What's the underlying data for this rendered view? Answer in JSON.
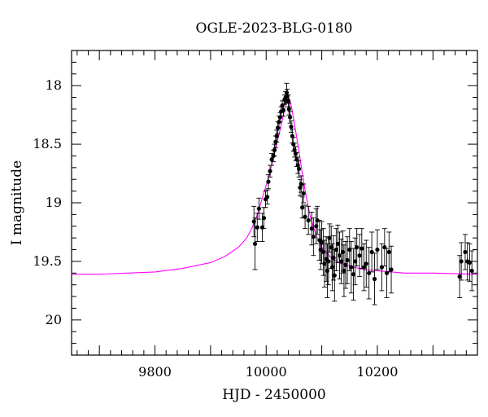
{
  "chart_data": {
    "type": "scatter",
    "title": "OGLE-2023-BLG-0180",
    "xlabel": "HJD - 2450000",
    "ylabel": "I magnitude",
    "xlim": [
      9650,
      10380
    ],
    "ylim": [
      20.3,
      17.7
    ],
    "y_inverted": true,
    "xticks": [
      9800,
      10000,
      10200
    ],
    "xtick_labels": [
      "9800",
      "10000",
      "10200"
    ],
    "yticks": [
      18,
      18.5,
      19,
      19.5,
      20
    ],
    "ytick_labels": [
      "18",
      "18.5",
      "19",
      "19.5",
      "20"
    ],
    "grid": false,
    "legend": "none",
    "colors": {
      "points": "#000000",
      "model": "#ff00ff",
      "axes": "#000000"
    },
    "series": [
      {
        "kind": "points_with_errorbars",
        "x": [
          9978,
          9980,
          9984,
          9987,
          9993,
          9996,
          9999,
          10002,
          10004,
          10007,
          10010,
          10013,
          10015,
          10017,
          10019,
          10021,
          10023,
          10025,
          10027,
          10029,
          10031,
          10033,
          10035,
          10037,
          10038,
          10040,
          10041,
          10043,
          10045,
          10047,
          10049,
          10051,
          10053,
          10055,
          10057,
          10059,
          10061,
          10063,
          10065,
          10067,
          10070,
          10076,
          10082,
          10085,
          10090,
          10092,
          10096,
          10098,
          10100,
          10103,
          10105,
          10108,
          10110,
          10112,
          10114,
          10117,
          10119,
          10121,
          10123,
          10126,
          10129,
          10132,
          10135,
          10138,
          10140,
          10143,
          10146,
          10150,
          10153,
          10157,
          10160,
          10163,
          10168,
          10172,
          10176,
          10180,
          10185,
          10190,
          10195,
          10200,
          10208,
          10213,
          10217,
          10221,
          10225,
          10348,
          10351,
          10358,
          10362,
          10366,
          10370
        ],
        "y": [
          19.16,
          19.35,
          19.21,
          19.05,
          19.21,
          19.13,
          18.97,
          18.95,
          18.82,
          18.73,
          18.63,
          18.6,
          18.55,
          18.48,
          18.43,
          18.36,
          18.31,
          18.27,
          18.22,
          18.17,
          18.21,
          18.12,
          18.1,
          18.06,
          18.09,
          18.13,
          18.2,
          18.27,
          18.35,
          18.43,
          18.5,
          18.55,
          18.58,
          18.63,
          18.68,
          18.71,
          18.87,
          18.84,
          19.04,
          18.92,
          19.12,
          19.15,
          19.22,
          19.29,
          19.2,
          19.15,
          19.32,
          19.4,
          19.34,
          19.42,
          19.52,
          19.48,
          19.58,
          19.5,
          19.3,
          19.38,
          19.55,
          19.47,
          19.62,
          19.4,
          19.35,
          19.45,
          19.5,
          19.42,
          19.58,
          19.53,
          19.49,
          19.4,
          19.55,
          19.61,
          19.5,
          19.38,
          19.45,
          19.39,
          19.55,
          19.52,
          19.6,
          19.42,
          19.65,
          19.4,
          19.55,
          19.38,
          19.6,
          19.42,
          19.57,
          19.63,
          19.5,
          19.42,
          19.5,
          19.51,
          19.58
        ],
        "yerr": [
          0.13,
          0.22,
          0.12,
          0.09,
          0.12,
          0.09,
          0.07,
          0.06,
          0.06,
          0.05,
          0.05,
          0.05,
          0.05,
          0.05,
          0.05,
          0.05,
          0.05,
          0.04,
          0.04,
          0.04,
          0.05,
          0.04,
          0.05,
          0.08,
          0.06,
          0.05,
          0.05,
          0.05,
          0.05,
          0.06,
          0.06,
          0.06,
          0.06,
          0.06,
          0.07,
          0.07,
          0.07,
          0.07,
          0.09,
          0.08,
          0.1,
          0.12,
          0.14,
          0.16,
          0.15,
          0.12,
          0.17,
          0.17,
          0.18,
          0.2,
          0.2,
          0.19,
          0.23,
          0.2,
          0.12,
          0.18,
          0.2,
          0.19,
          0.22,
          0.18,
          0.16,
          0.2,
          0.19,
          0.18,
          0.22,
          0.2,
          0.2,
          0.18,
          0.22,
          0.22,
          0.2,
          0.16,
          0.18,
          0.17,
          0.2,
          0.2,
          0.22,
          0.17,
          0.22,
          0.17,
          0.2,
          0.16,
          0.21,
          0.17,
          0.2,
          0.18,
          0.16,
          0.15,
          0.16,
          0.16,
          0.17
        ]
      },
      {
        "kind": "model_curve",
        "color": "#ff00ff",
        "x": [
          9650,
          9700,
          9750,
          9800,
          9850,
          9900,
          9925,
          9950,
          9965,
          9975,
          9985,
          9995,
          10005,
          10015,
          10025,
          10030,
          10035,
          10039,
          10043,
          10047,
          10052,
          10058,
          10065,
          10072,
          10080,
          10090,
          10100,
          10115,
          10130,
          10150,
          10175,
          10200,
          10250,
          10300,
          10380
        ],
        "y": [
          19.61,
          19.61,
          19.6,
          19.59,
          19.56,
          19.51,
          19.46,
          19.38,
          19.3,
          19.21,
          19.09,
          18.93,
          18.77,
          18.58,
          18.38,
          18.27,
          18.16,
          18.08,
          18.13,
          18.22,
          18.36,
          18.53,
          18.75,
          18.95,
          19.13,
          19.28,
          19.38,
          19.46,
          19.51,
          19.54,
          19.57,
          19.58,
          19.6,
          19.6,
          19.61
        ]
      }
    ]
  }
}
